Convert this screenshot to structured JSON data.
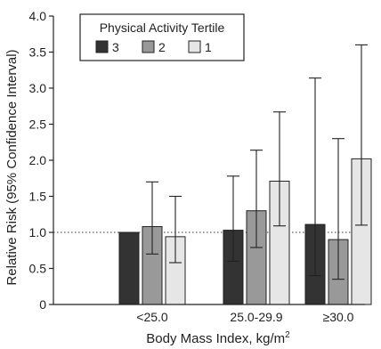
{
  "chart_data": {
    "type": "bar",
    "title": "",
    "xlabel": "Body Mass Index, kg/m",
    "xlabel_superscript": "2",
    "ylabel": "Relative Risk (95% Confidence Interval)",
    "ylim": [
      0,
      4.0
    ],
    "yticks": [
      "0",
      "0.5",
      "1.0",
      "1.5",
      "2.0",
      "2.5",
      "3.0",
      "3.5",
      "4.0"
    ],
    "reference_line": 1.0,
    "categories": [
      "<25.0",
      "25.0-29.9",
      "≥30.0"
    ],
    "legend": {
      "title": "Physical Activity Tertile",
      "placement": "top-left"
    },
    "series": [
      {
        "name": "3",
        "color": "#333333",
        "values": [
          1.0,
          1.03,
          1.11
        ],
        "lower": [
          1.0,
          0.6,
          0.4
        ],
        "upper": [
          1.0,
          1.78,
          3.14
        ]
      },
      {
        "name": "2",
        "color": "#999999",
        "values": [
          1.08,
          1.3,
          0.9
        ],
        "lower": [
          0.7,
          0.79,
          0.35
        ],
        "upper": [
          1.7,
          2.14,
          2.3
        ]
      },
      {
        "name": "1",
        "color": "#e6e6e6",
        "values": [
          0.94,
          1.71,
          2.02
        ],
        "lower": [
          0.58,
          1.09,
          1.1
        ],
        "upper": [
          1.5,
          2.67,
          3.6
        ]
      }
    ]
  }
}
